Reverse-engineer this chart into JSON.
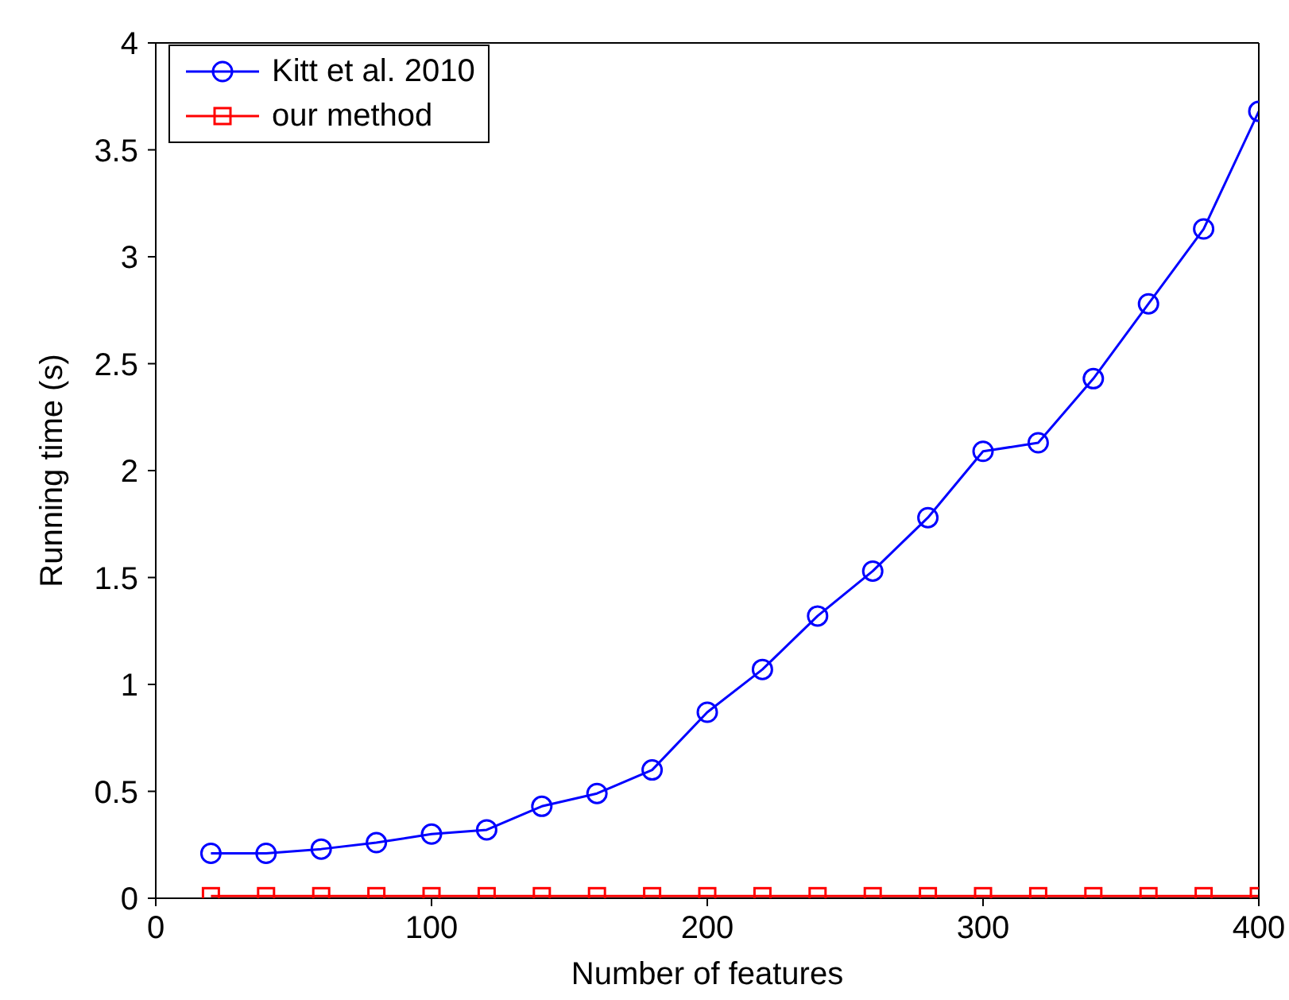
{
  "chart_data": {
    "type": "line",
    "xlabel": "Number of features",
    "ylabel": "Running time (s)",
    "x": [
      20,
      40,
      60,
      80,
      100,
      120,
      140,
      160,
      180,
      200,
      220,
      240,
      260,
      280,
      300,
      320,
      340,
      360,
      380,
      400
    ],
    "series": [
      {
        "name": "Kitt et al. 2010",
        "color": "#0000ff",
        "marker": "circle",
        "values": [
          0.21,
          0.21,
          0.23,
          0.26,
          0.3,
          0.32,
          0.43,
          0.49,
          0.6,
          0.87,
          1.07,
          1.32,
          1.53,
          1.78,
          2.09,
          2.13,
          2.43,
          2.78,
          3.13,
          3.68
        ]
      },
      {
        "name": "our method",
        "color": "#ff0000",
        "marker": "square",
        "values": [
          0.01,
          0.01,
          0.01,
          0.01,
          0.01,
          0.01,
          0.01,
          0.01,
          0.01,
          0.01,
          0.01,
          0.01,
          0.01,
          0.01,
          0.01,
          0.01,
          0.01,
          0.01,
          0.01,
          0.01
        ]
      }
    ],
    "xlim": [
      0,
      400
    ],
    "xticks": [
      0,
      100,
      200,
      300,
      400
    ],
    "ylim": [
      0,
      4
    ],
    "yticks": [
      0,
      0.5,
      1,
      1.5,
      2,
      2.5,
      3,
      3.5,
      4
    ],
    "grid": false,
    "legend": "top left",
    "line_style": "solid"
  }
}
